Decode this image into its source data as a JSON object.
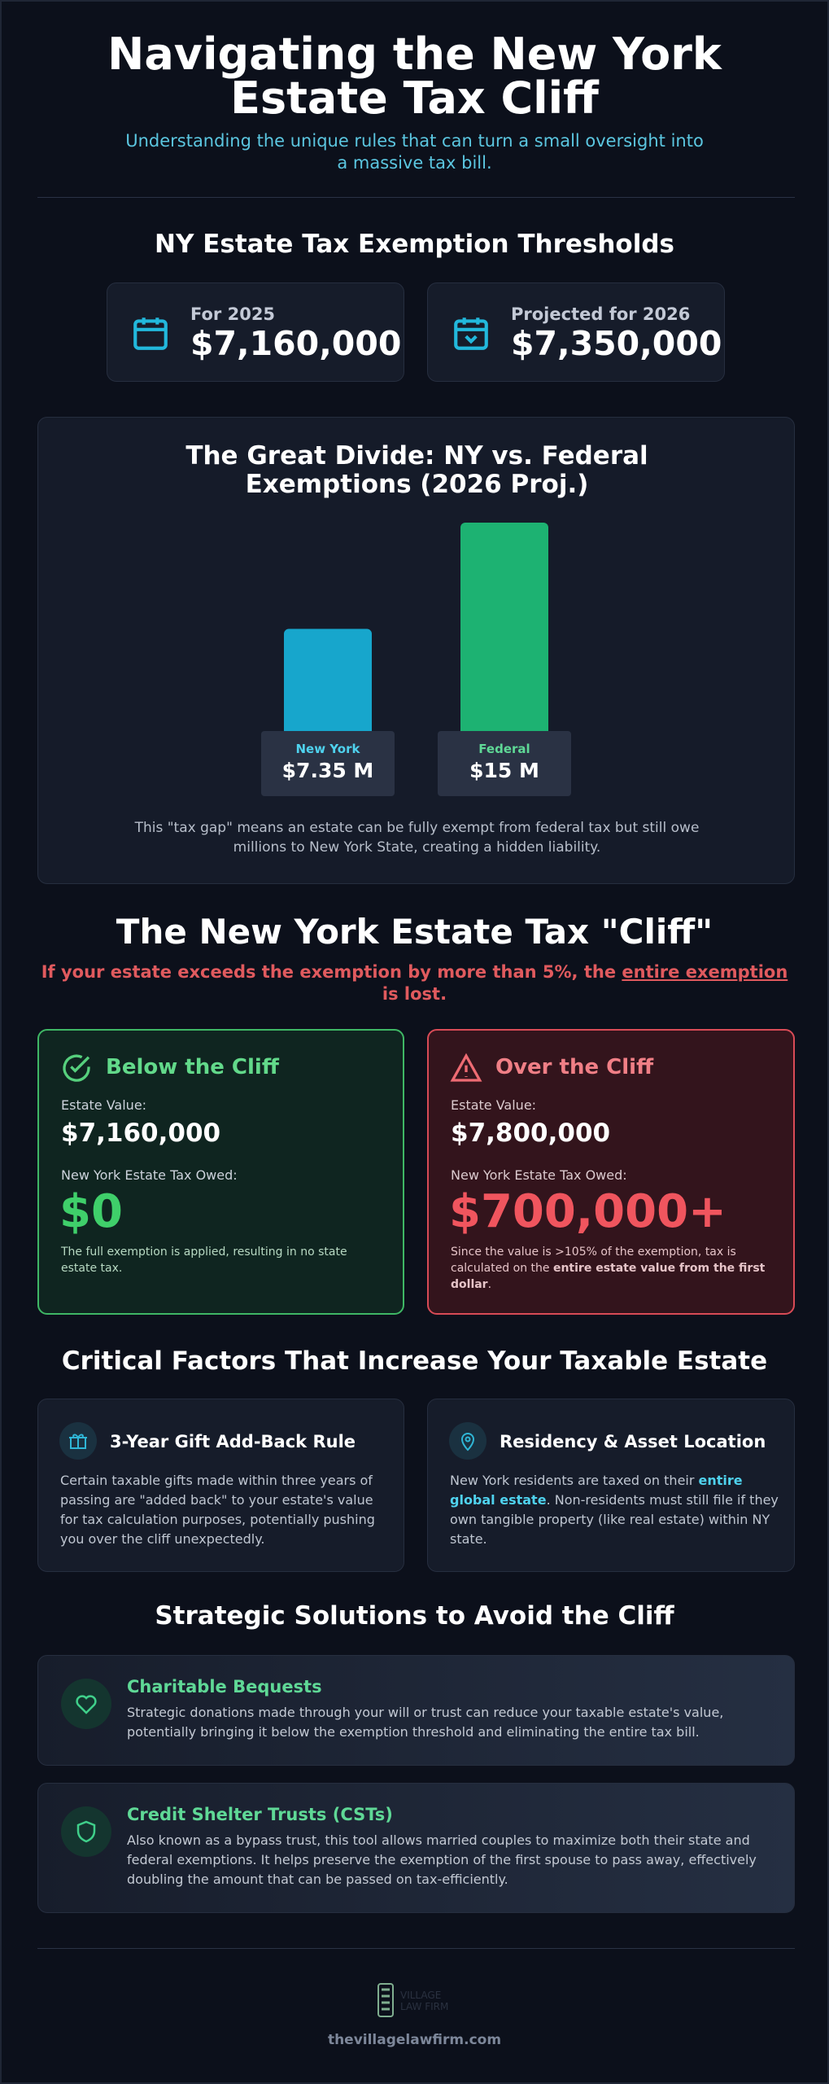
{
  "header": {
    "title": "Navigating the New York Estate Tax Cliff",
    "subtitle": "Understanding the unique rules that can turn a small oversight into a massive tax bill."
  },
  "thresholds": {
    "title": "NY Estate Tax Exemption Thresholds",
    "cards": [
      {
        "label": "For 2025",
        "value": "$7,160,000"
      },
      {
        "label": "Projected for 2026",
        "value": "$7,350,000"
      }
    ]
  },
  "chart_data": {
    "type": "bar",
    "title": "The Great Divide: NY vs. Federal Exemptions (2026 Proj.)",
    "categories": [
      "New York",
      "Federal"
    ],
    "values": [
      7.35,
      15
    ],
    "value_labels": [
      "$7.35 M",
      "$15 M"
    ],
    "colors": [
      "#17a6cc",
      "#1db272"
    ],
    "caption": "This \"tax gap\" means an estate can be fully exempt from federal tax but still owe millions to New York State, creating a hidden liability."
  },
  "cliff": {
    "title": "The New York Estate Tax \"Cliff\"",
    "warning": [
      "If your estate exceeds the exemption by more than 5%, the ",
      "entire exemption",
      " is lost."
    ],
    "cards": [
      {
        "heading": "Below the Cliff",
        "value_label": "Estate Value:",
        "value": "$7,160,000",
        "tax_label": "New York Estate Tax Owed:",
        "tax": "$0",
        "note": [
          "The full exemption is applied, resulting in no state estate tax."
        ]
      },
      {
        "heading": "Over the Cliff",
        "value_label": "Estate Value:",
        "value": "$7,800,000",
        "tax_label": "New York Estate Tax Owed:",
        "tax": "$700,000+",
        "note": [
          "Since the value is >105% of the exemption, tax is calculated on the ",
          "entire estate value from the first dollar",
          "."
        ]
      }
    ]
  },
  "factors": {
    "title": "Critical Factors That Increase Your Taxable Estate",
    "cards": [
      {
        "heading": "3-Year Gift Add-Back Rule",
        "text": [
          "Certain taxable gifts made within three years of passing are \"added back\" to your estate's value for tax calculation purposes, potentially pushing you over the cliff unexpectedly."
        ]
      },
      {
        "heading": "Residency & Asset Location",
        "text": [
          "New York residents are taxed on their ",
          "entire global estate",
          ". Non-residents must still file if they own tangible property (like real estate) within NY state."
        ]
      }
    ]
  },
  "solutions": {
    "title": "Strategic Solutions to Avoid the Cliff",
    "items": [
      {
        "heading": "Charitable Bequests",
        "text": "Strategic donations made through your will or trust can reduce your taxable estate's value, potentially bringing it below the exemption threshold and eliminating the entire tax bill."
      },
      {
        "heading": "Credit Shelter Trusts (CSTs)",
        "text": "Also known as a bypass trust, this tool allows married couples to maximize both their state and federal exemptions. It helps preserve the exemption of the first spouse to pass away, effectively doubling the amount that can be passed on tax-efficiently."
      }
    ]
  },
  "footer": {
    "logo": "VILLAGE LAW FIRM",
    "url": "thevillagelawfirm.com"
  }
}
